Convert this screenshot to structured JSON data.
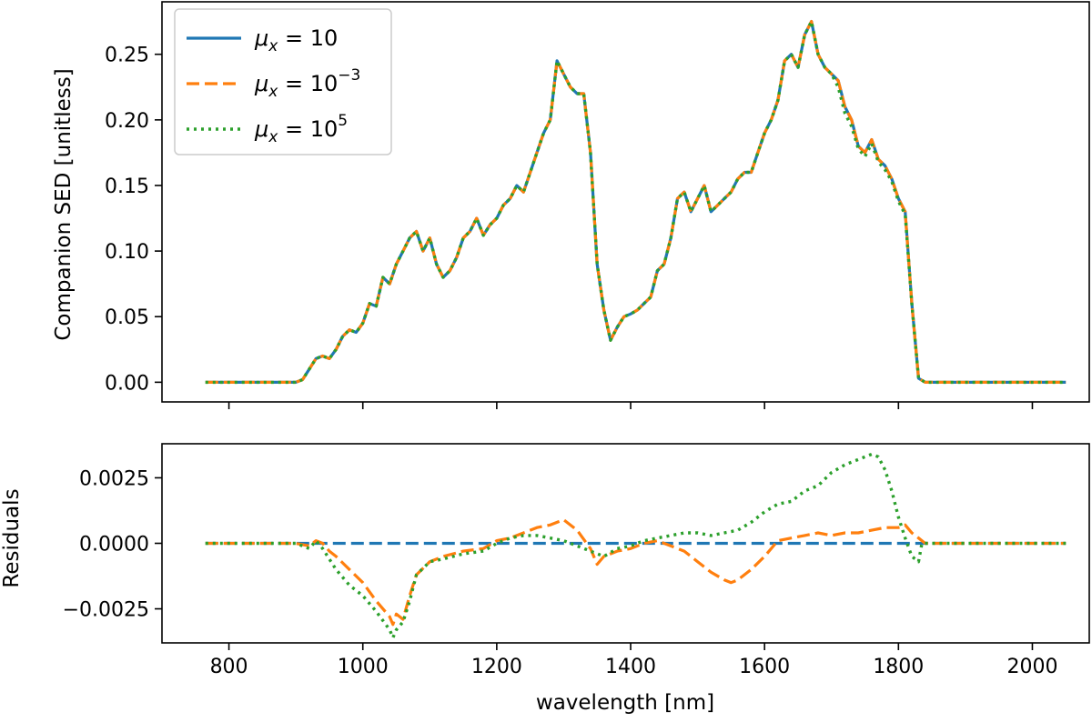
{
  "chart_data": [
    {
      "type": "line",
      "panel": "top",
      "title": "",
      "xlabel": "",
      "ylabel": "Companion SED [unitless]",
      "xlim": [
        700,
        2085
      ],
      "ylim": [
        -0.015,
        0.29
      ],
      "xticks": [
        800,
        1000,
        1200,
        1400,
        1600,
        1800,
        2000
      ],
      "xtick_labels_visible": false,
      "yticks": [
        0.0,
        0.05,
        0.1,
        0.15,
        0.2,
        0.25
      ],
      "ytick_labels": [
        "0.00",
        "0.05",
        "0.10",
        "0.15",
        "0.20",
        "0.25"
      ],
      "grid": false,
      "legend": {
        "placement": "top-left",
        "entries": [
          {
            "base": "μ",
            "sub": "x",
            "eq": " = 10",
            "sup": "",
            "color": "#1f77b4",
            "style": "solid"
          },
          {
            "base": "μ",
            "sub": "x",
            "eq": " = 10",
            "sup": "−3",
            "color": "#ff7f0e",
            "style": "dashed"
          },
          {
            "base": "μ",
            "sub": "x",
            "eq": " = 10",
            "sup": "5",
            "color": "#2ca02c",
            "style": "dotted"
          }
        ]
      },
      "x": [
        765,
        800,
        850,
        900,
        910,
        920,
        930,
        940,
        950,
        960,
        970,
        980,
        990,
        1000,
        1010,
        1020,
        1030,
        1040,
        1050,
        1060,
        1070,
        1080,
        1090,
        1100,
        1110,
        1120,
        1130,
        1140,
        1150,
        1160,
        1170,
        1180,
        1190,
        1200,
        1210,
        1220,
        1230,
        1240,
        1250,
        1260,
        1270,
        1280,
        1290,
        1300,
        1310,
        1320,
        1330,
        1340,
        1350,
        1360,
        1370,
        1380,
        1390,
        1400,
        1410,
        1420,
        1430,
        1440,
        1450,
        1460,
        1470,
        1480,
        1490,
        1500,
        1510,
        1520,
        1530,
        1540,
        1550,
        1560,
        1570,
        1580,
        1590,
        1600,
        1610,
        1620,
        1630,
        1640,
        1650,
        1660,
        1670,
        1680,
        1690,
        1700,
        1710,
        1720,
        1730,
        1740,
        1750,
        1760,
        1770,
        1780,
        1790,
        1800,
        1810,
        1820,
        1830,
        1840,
        1900,
        2000,
        2050
      ],
      "series": [
        {
          "name": "μx = 10",
          "color": "#1f77b4",
          "style": "solid",
          "values": [
            0,
            0,
            0,
            0,
            0.002,
            0.01,
            0.018,
            0.02,
            0.018,
            0.025,
            0.035,
            0.04,
            0.038,
            0.045,
            0.06,
            0.058,
            0.08,
            0.075,
            0.09,
            0.1,
            0.11,
            0.115,
            0.1,
            0.11,
            0.09,
            0.08,
            0.085,
            0.095,
            0.11,
            0.115,
            0.125,
            0.112,
            0.12,
            0.125,
            0.135,
            0.14,
            0.15,
            0.145,
            0.16,
            0.175,
            0.19,
            0.2,
            0.245,
            0.235,
            0.225,
            0.22,
            0.22,
            0.175,
            0.09,
            0.055,
            0.032,
            0.042,
            0.05,
            0.052,
            0.055,
            0.06,
            0.065,
            0.085,
            0.09,
            0.11,
            0.14,
            0.145,
            0.13,
            0.14,
            0.15,
            0.13,
            0.135,
            0.14,
            0.145,
            0.155,
            0.16,
            0.16,
            0.175,
            0.19,
            0.2,
            0.215,
            0.245,
            0.25,
            0.24,
            0.265,
            0.275,
            0.25,
            0.24,
            0.235,
            0.23,
            0.21,
            0.2,
            0.18,
            0.175,
            0.185,
            0.17,
            0.165,
            0.155,
            0.14,
            0.13,
            0.06,
            0.003,
            0,
            0,
            0,
            0
          ]
        },
        {
          "name": "μx = 10−3",
          "color": "#ff7f0e",
          "style": "dashed",
          "values": [
            0,
            0,
            0,
            0,
            0.002,
            0.01,
            0.018,
            0.02,
            0.018,
            0.025,
            0.035,
            0.04,
            0.038,
            0.045,
            0.06,
            0.058,
            0.08,
            0.075,
            0.09,
            0.1,
            0.11,
            0.115,
            0.1,
            0.11,
            0.09,
            0.08,
            0.085,
            0.095,
            0.11,
            0.115,
            0.125,
            0.112,
            0.12,
            0.125,
            0.135,
            0.14,
            0.15,
            0.145,
            0.16,
            0.175,
            0.19,
            0.2,
            0.245,
            0.235,
            0.225,
            0.22,
            0.22,
            0.175,
            0.09,
            0.055,
            0.032,
            0.042,
            0.05,
            0.052,
            0.055,
            0.06,
            0.065,
            0.085,
            0.09,
            0.11,
            0.14,
            0.145,
            0.13,
            0.14,
            0.15,
            0.13,
            0.135,
            0.14,
            0.145,
            0.155,
            0.16,
            0.16,
            0.175,
            0.19,
            0.2,
            0.215,
            0.245,
            0.25,
            0.24,
            0.265,
            0.275,
            0.25,
            0.24,
            0.235,
            0.23,
            0.21,
            0.2,
            0.18,
            0.175,
            0.185,
            0.17,
            0.165,
            0.155,
            0.14,
            0.13,
            0.06,
            0.003,
            0,
            0,
            0,
            0
          ]
        },
        {
          "name": "μx = 105",
          "color": "#2ca02c",
          "style": "dotted",
          "values": [
            0,
            0,
            0,
            0,
            0.002,
            0.01,
            0.018,
            0.02,
            0.018,
            0.025,
            0.035,
            0.04,
            0.038,
            0.045,
            0.06,
            0.058,
            0.08,
            0.075,
            0.09,
            0.1,
            0.11,
            0.115,
            0.1,
            0.11,
            0.09,
            0.08,
            0.085,
            0.095,
            0.11,
            0.115,
            0.125,
            0.112,
            0.12,
            0.125,
            0.135,
            0.14,
            0.15,
            0.145,
            0.16,
            0.175,
            0.19,
            0.2,
            0.245,
            0.235,
            0.225,
            0.22,
            0.22,
            0.175,
            0.09,
            0.055,
            0.032,
            0.042,
            0.05,
            0.052,
            0.055,
            0.06,
            0.065,
            0.085,
            0.09,
            0.11,
            0.14,
            0.145,
            0.13,
            0.14,
            0.15,
            0.13,
            0.135,
            0.14,
            0.145,
            0.155,
            0.16,
            0.16,
            0.175,
            0.19,
            0.2,
            0.215,
            0.245,
            0.25,
            0.24,
            0.265,
            0.275,
            0.25,
            0.24,
            0.235,
            0.225,
            0.205,
            0.195,
            0.178,
            0.172,
            0.182,
            0.168,
            0.162,
            0.153,
            0.138,
            0.128,
            0.06,
            0.003,
            0,
            0,
            0,
            0
          ]
        }
      ]
    },
    {
      "type": "line",
      "panel": "bottom",
      "title": "",
      "xlabel": "wavelength [nm]",
      "ylabel": "Residuals",
      "xlim": [
        700,
        2085
      ],
      "ylim": [
        -0.0038,
        0.0038
      ],
      "xticks": [
        800,
        1000,
        1200,
        1400,
        1600,
        1800,
        2000
      ],
      "xtick_labels": [
        "800",
        "1000",
        "1200",
        "1400",
        "1600",
        "1800",
        "2000"
      ],
      "yticks": [
        -0.0025,
        0.0,
        0.0025
      ],
      "ytick_labels": [
        "−0.0025",
        "0.0000",
        "0.0025"
      ],
      "grid": false,
      "series": [
        {
          "name": "μx = 10",
          "color": "#1f77b4",
          "style": "dashed",
          "x": [
            765,
            2050
          ],
          "values": [
            0,
            0
          ]
        },
        {
          "name": "μx = 10−3",
          "color": "#ff7f0e",
          "style": "dashed",
          "x": [
            765,
            900,
            920,
            930,
            940,
            950,
            960,
            980,
            1000,
            1020,
            1040,
            1045,
            1050,
            1060,
            1070,
            1080,
            1100,
            1120,
            1150,
            1180,
            1200,
            1220,
            1240,
            1260,
            1280,
            1290,
            1300,
            1320,
            1340,
            1350,
            1360,
            1380,
            1400,
            1420,
            1440,
            1460,
            1480,
            1500,
            1520,
            1540,
            1550,
            1560,
            1580,
            1600,
            1620,
            1640,
            1660,
            1680,
            1700,
            1720,
            1740,
            1760,
            1780,
            1800,
            1810,
            1820,
            1830,
            1840,
            2050
          ],
          "values": [
            0,
            0,
            -0.0001,
            0.0001,
            0.0,
            -0.0003,
            -0.0005,
            -0.001,
            -0.0015,
            -0.0022,
            -0.0028,
            -0.0031,
            -0.0027,
            -0.0029,
            -0.002,
            -0.0012,
            -0.0007,
            -0.0005,
            -0.0003,
            -0.0002,
            0.0001,
            0.0002,
            0.0004,
            0.0006,
            0.0007,
            0.0008,
            0.0009,
            0.0005,
            -0.0002,
            -0.0008,
            -0.0005,
            -0.0003,
            -0.0002,
            0.0,
            0.0001,
            -0.0001,
            -0.0003,
            -0.0007,
            -0.0011,
            -0.0014,
            -0.0015,
            -0.0014,
            -0.001,
            -0.0005,
            0.0001,
            0.0002,
            0.0003,
            0.0004,
            0.0003,
            0.0004,
            0.0004,
            0.0005,
            0.0006,
            0.0006,
            0.0007,
            0.0004,
            0.0002,
            0.0,
            0
          ]
        },
        {
          "name": "μx = 105",
          "color": "#2ca02c",
          "style": "dotted",
          "x": [
            765,
            900,
            920,
            930,
            940,
            950,
            960,
            980,
            1000,
            1020,
            1040,
            1045,
            1050,
            1060,
            1070,
            1080,
            1100,
            1120,
            1150,
            1180,
            1200,
            1220,
            1240,
            1260,
            1280,
            1300,
            1320,
            1340,
            1360,
            1380,
            1400,
            1420,
            1440,
            1460,
            1480,
            1500,
            1520,
            1540,
            1560,
            1580,
            1600,
            1620,
            1640,
            1660,
            1680,
            1700,
            1720,
            1740,
            1760,
            1770,
            1780,
            1790,
            1800,
            1810,
            1820,
            1825,
            1830,
            1835,
            1840,
            2050
          ],
          "values": [
            0,
            0,
            -0.0002,
            0.0001,
            -0.0002,
            -0.0006,
            -0.001,
            -0.0016,
            -0.002,
            -0.0026,
            -0.0033,
            -0.0036,
            -0.0033,
            -0.003,
            -0.0022,
            -0.0012,
            -0.0007,
            -0.0006,
            -0.0004,
            -0.0003,
            0.0,
            0.0002,
            0.0003,
            0.0003,
            0.0002,
            0.0001,
            -0.0001,
            -0.0003,
            -0.0005,
            -0.0002,
            -0.0001,
            0.0001,
            0.0002,
            0.0003,
            0.0004,
            0.0004,
            0.0003,
            0.0004,
            0.0005,
            0.0008,
            0.0012,
            0.0015,
            0.0016,
            0.002,
            0.0022,
            0.0027,
            0.003,
            0.0032,
            0.0034,
            0.0033,
            0.0028,
            0.002,
            0.001,
            0.0002,
            -0.0005,
            -0.0006,
            -0.0007,
            0.0,
            0.0,
            0
          ]
        }
      ]
    }
  ]
}
